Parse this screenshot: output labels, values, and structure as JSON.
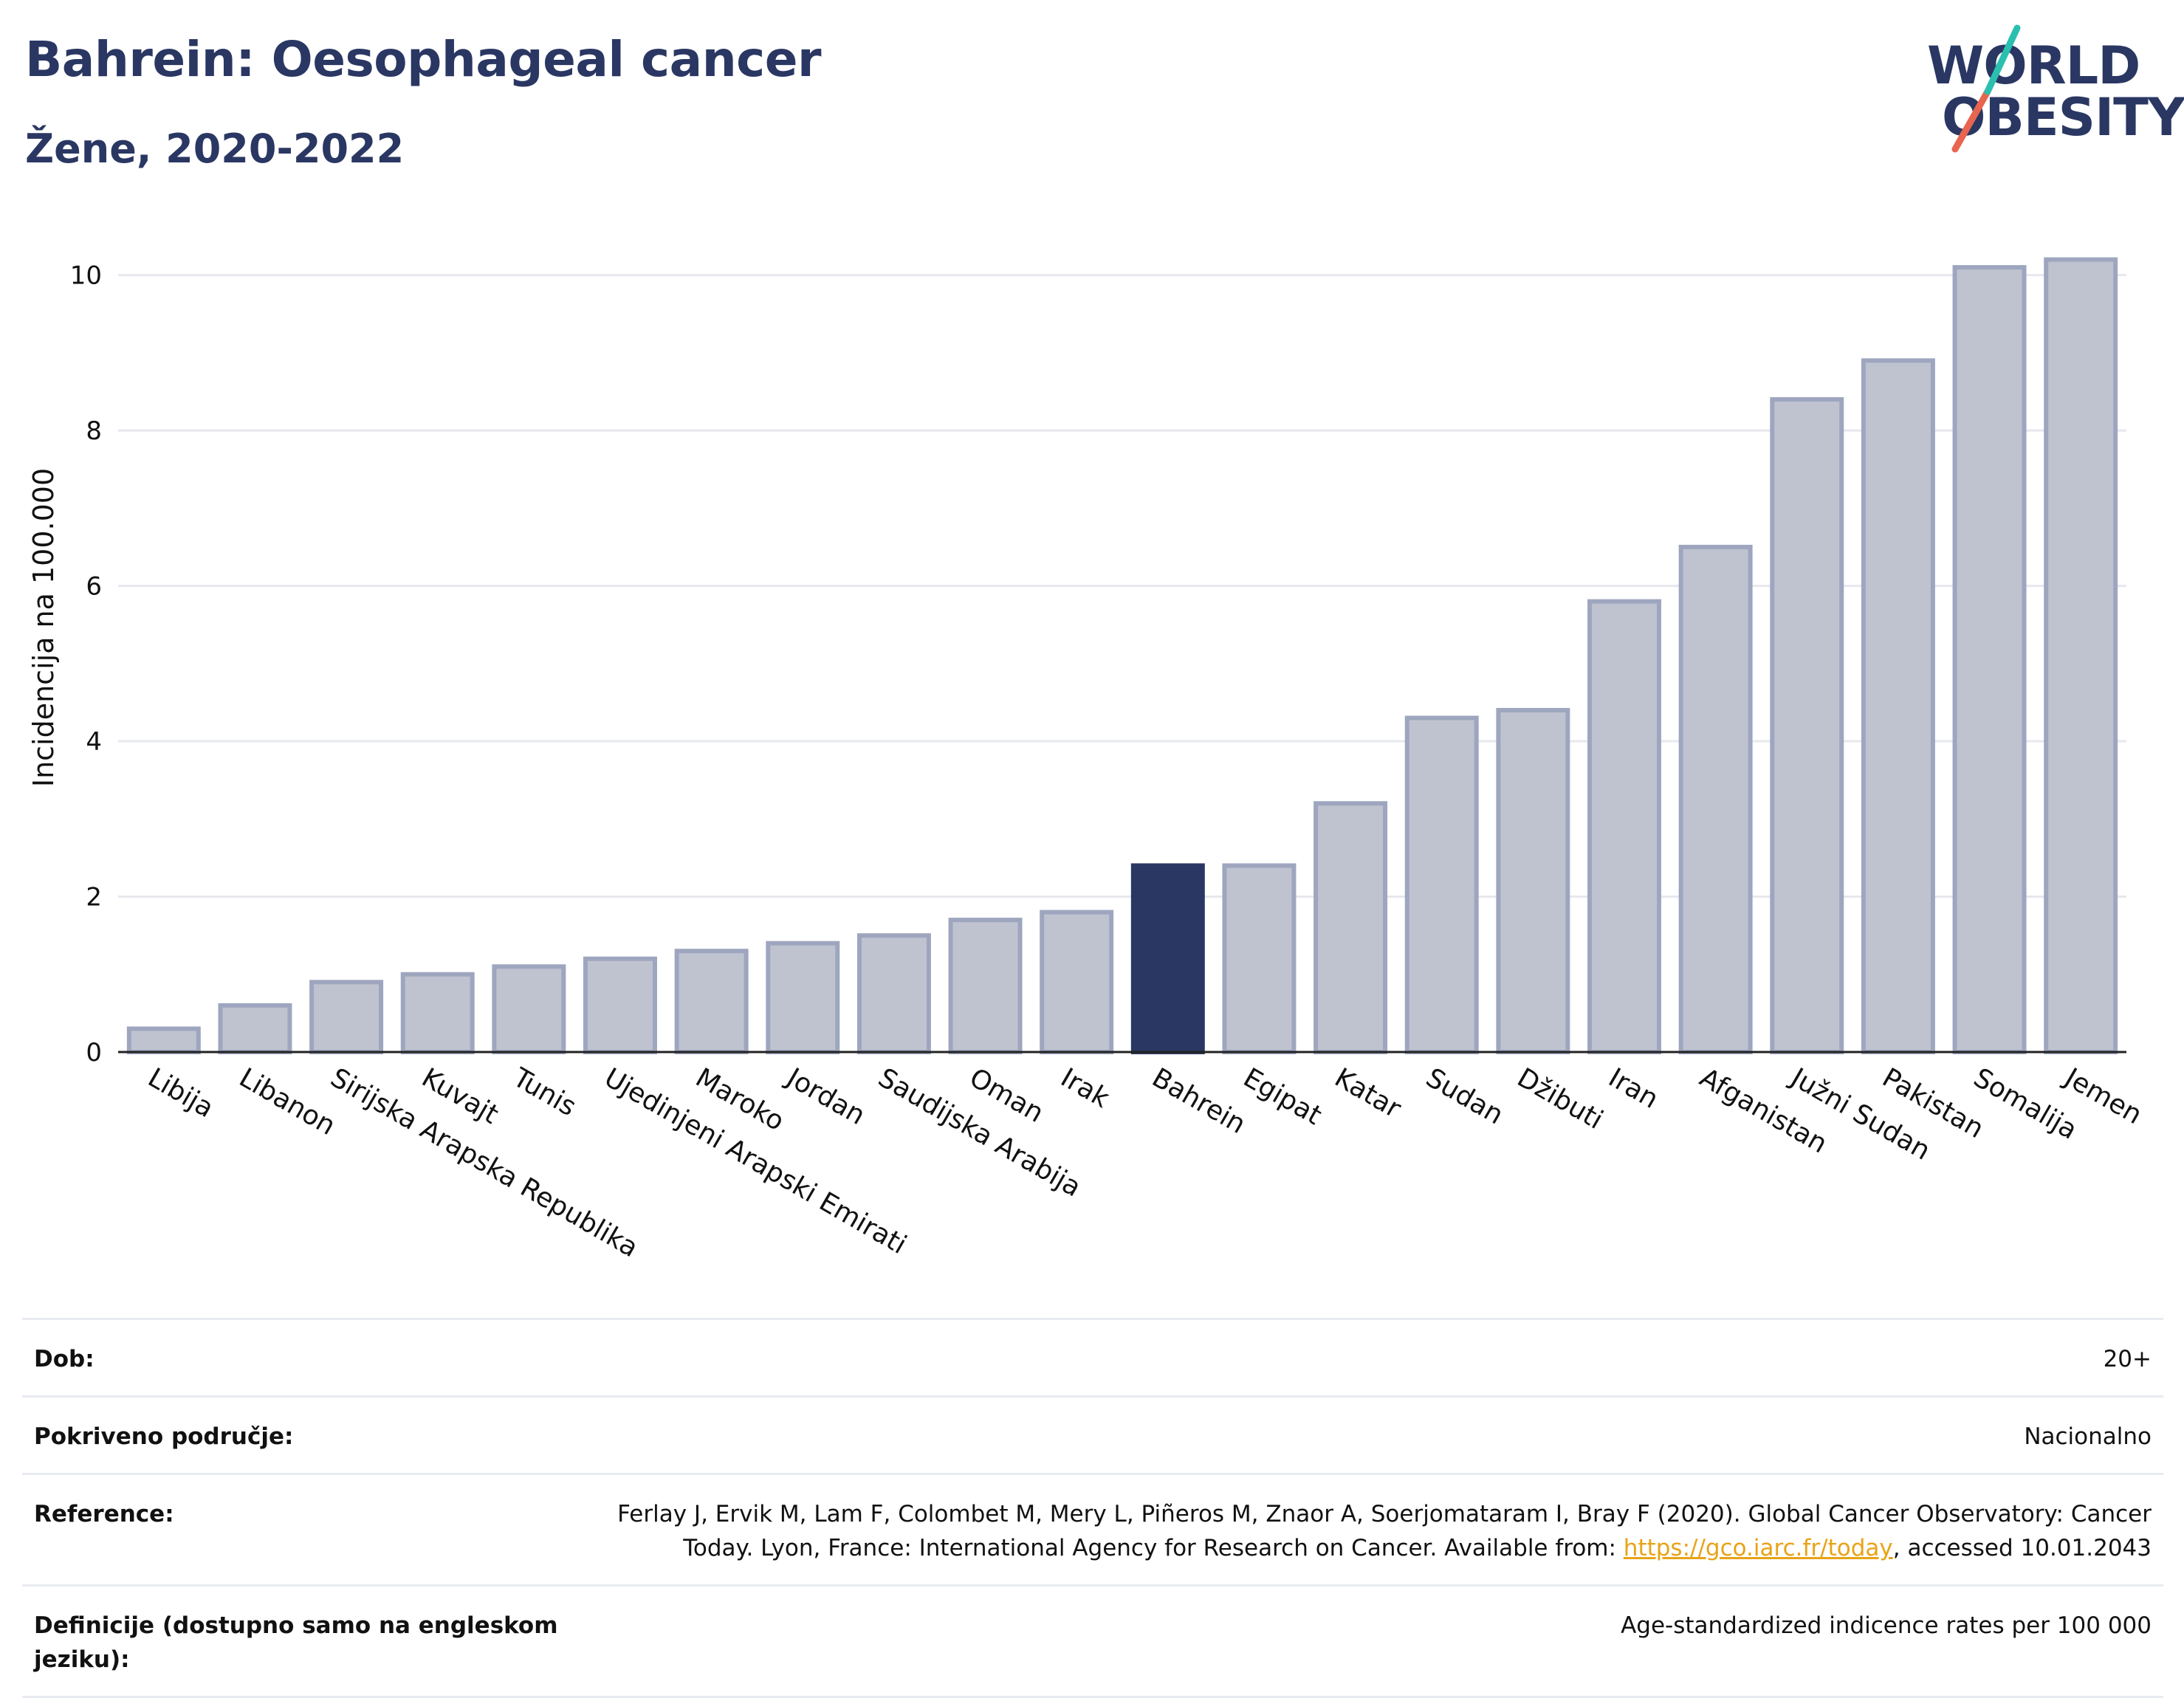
{
  "header": {
    "title": "Bahrein: Oesophageal cancer",
    "subtitle": "Žene, 2020-2022"
  },
  "logo": {
    "line1": "WORLD",
    "line2": "OBESITY",
    "colors": {
      "text": "#2a3763",
      "slash_teal": "#2bbfb0",
      "slash_red": "#e8654f"
    }
  },
  "colors": {
    "bar": "#bfc3d0",
    "bar_stroke": "#9ea6bf",
    "highlight": "#2a3763",
    "grid": "#e6e8ee",
    "axis": "#222222",
    "link": "#e8a317"
  },
  "chart_data": {
    "type": "bar",
    "title": "",
    "xlabel": "",
    "ylabel": "Incidencija na 100.000",
    "ylim": [
      0,
      10.5
    ],
    "yticks": [
      0,
      2,
      4,
      6,
      8,
      10
    ],
    "grid": true,
    "highlight": "Bahrein",
    "categories": [
      "Libija",
      "Libanon",
      "Sirijska Arapska Republika",
      "Kuvajt",
      "Tunis",
      "Ujedinjeni Arapski Emirati",
      "Maroko",
      "Jordan",
      "Saudijska Arabija",
      "Oman",
      "Irak",
      "Bahrein",
      "Egipat",
      "Katar",
      "Sudan",
      "Džibuti",
      "Iran",
      "Afganistan",
      "Južni Sudan",
      "Pakistan",
      "Somalija",
      "Jemen"
    ],
    "values": [
      0.3,
      0.6,
      0.9,
      1.0,
      1.1,
      1.2,
      1.3,
      1.4,
      1.5,
      1.7,
      1.8,
      2.4,
      2.4,
      3.2,
      4.3,
      4.4,
      5.8,
      6.5,
      8.4,
      8.9,
      10.1,
      10.2
    ]
  },
  "meta": {
    "age_label": "Dob:",
    "age_value": "20+",
    "coverage_label": "Pokriveno područje:",
    "coverage_value": "Nacionalno",
    "reference_label": "Reference:",
    "reference_text_1": "Ferlay J, Ervik M, Lam F, Colombet M, Mery L, Piñeros M, Znaor A, Soerjomataram I, Bray F (2020). Global Cancer Observatory: Cancer",
    "reference_text_2": "Today. Lyon, France: International Agency for Research on Cancer. Available from: ",
    "reference_link": "https://gco.iarc.fr/today",
    "reference_text_3": ", accessed 10.01.2043",
    "definitions_label": "Definicije (dostupno samo na engleskom jeziku):",
    "definitions_value": "Age-standardized indicence rates per 100 000"
  }
}
